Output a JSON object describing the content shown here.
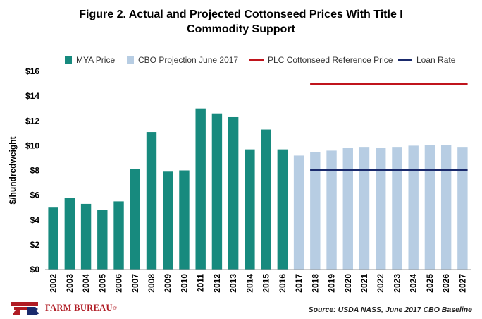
{
  "chart_data": {
    "type": "bar",
    "title_line1": "Figure 2. Actual and Projected Cottonseed Prices With Title I",
    "title_line2": "Commodity Support",
    "ylabel": "$/hundredweight",
    "ylim": [
      0,
      16
    ],
    "yticks": [
      0,
      2,
      4,
      6,
      8,
      10,
      12,
      14,
      16
    ],
    "ytick_labels": [
      "$0",
      "$2",
      "$4",
      "$6",
      "$8",
      "$10",
      "$12",
      "$14",
      "$16"
    ],
    "categories": [
      "2002",
      "2003",
      "2004",
      "2005",
      "2006",
      "2007",
      "2008",
      "2009",
      "2010",
      "2011",
      "2012",
      "2013",
      "2014",
      "2015",
      "2016",
      "2017",
      "2018",
      "2019",
      "2020",
      "2021",
      "2022",
      "2023",
      "2024",
      "2025",
      "2026",
      "2027"
    ],
    "series": [
      {
        "name": "MYA Price",
        "type": "bar",
        "color": "#178a7e",
        "values": [
          5.0,
          5.8,
          5.3,
          4.8,
          5.5,
          8.1,
          11.1,
          7.9,
          8.0,
          13.0,
          12.6,
          12.3,
          9.7,
          11.3,
          9.7,
          null,
          null,
          null,
          null,
          null,
          null,
          null,
          null,
          null,
          null,
          null
        ]
      },
      {
        "name": "CBO Projection June 2017",
        "type": "bar",
        "color": "#b7cde3",
        "values": [
          null,
          null,
          null,
          null,
          null,
          null,
          null,
          null,
          null,
          null,
          null,
          null,
          null,
          null,
          null,
          9.2,
          9.5,
          9.6,
          9.8,
          9.9,
          9.85,
          9.9,
          10.0,
          10.05,
          10.05,
          9.9
        ]
      },
      {
        "name": "PLC Cottonseed Reference Price",
        "type": "line",
        "color": "#c0141c",
        "x_start": "2018",
        "x_end": "2027",
        "value": 15.0
      },
      {
        "name": "Loan Rate",
        "type": "line",
        "color": "#1a2a6c",
        "x_start": "2018",
        "x_end": "2027",
        "value": 8.0
      }
    ]
  },
  "source": "Source: USDA NASS, June 2017 CBO Baseline",
  "logo": {
    "text": "FARM BUREAU",
    "mark": "®",
    "letters": "FB"
  }
}
